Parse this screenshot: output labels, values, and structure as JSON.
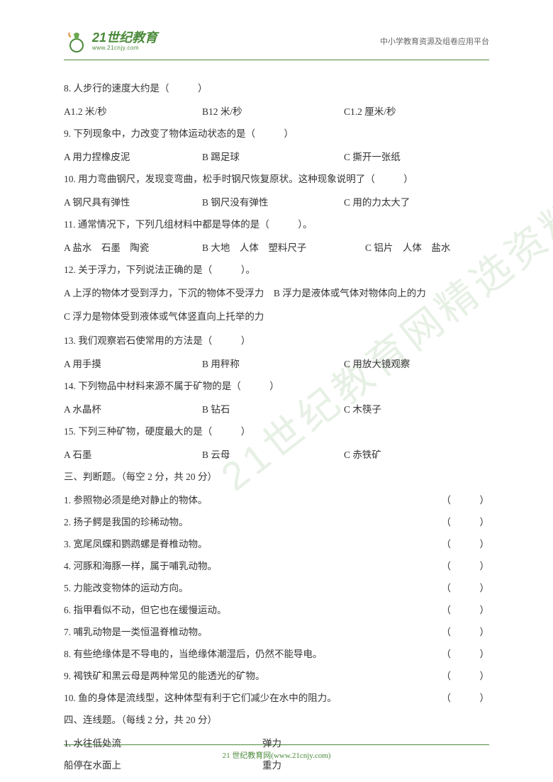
{
  "header": {
    "logo_main": "21世纪教育",
    "logo_sub": "www.21cnjy.com",
    "right_text": "中小学教育资源及组卷应用平台"
  },
  "watermark": "21世纪教育网精选资料",
  "questions": {
    "q8": {
      "stem": "8. 人步行的速度大约是（　　　）",
      "a": "A1.2 米/秒",
      "b": "B12 米/秒",
      "c": "C1.2 厘米/秒"
    },
    "q9": {
      "stem": "9. 下列现象中，力改变了物体运动状态的是（　　　）",
      "a": "A 用力捏橡皮泥",
      "b": "B 踢足球",
      "c": "C 撕开一张纸"
    },
    "q10": {
      "stem": "10. 用力弯曲钢尺，发现变弯曲，松手时钢尺恢复原状。这种现象说明了（　　　）",
      "a": "A 钢尺具有弹性",
      "b": "B 钢尺没有弹性",
      "c": "C 用的力太大了"
    },
    "q11": {
      "stem": "11. 通常情况下，下列几组材料中都是导体的是（　　　）。",
      "a": "A 盐水　石墨　陶瓷",
      "b": "B 大地　人体　塑料尺子",
      "c": "C 铝片　人体　盐水"
    },
    "q12": {
      "stem": "12. 关于浮力，下列说法正确的是（　　　）。",
      "ab": "A 上浮的物体才受到浮力，下沉的物体不受浮力　B 浮力是液体或气体对物体向上的力",
      "c": "C 浮力是物体受到液体或气体竖直向上托举的力"
    },
    "q13": {
      "stem": "13. 我们观察岩石使常用的方法是（　　　）",
      "a": "A 用手摸",
      "b": "B 用秤称",
      "c": "C 用放大镜观察"
    },
    "q14": {
      "stem": "14. 下列物品中材料来源不属于矿物的是（　　　）",
      "a": "A 水晶杯",
      "b": "B 钻石",
      "c": "C 木筷子"
    },
    "q15": {
      "stem": "15. 下列三种矿物，硬度最大的是（　　　）",
      "a": "A 石墨",
      "b": "B 云母",
      "c": "C 赤铁矿"
    }
  },
  "section3": {
    "title": "三、判断题。（每空 2 分，共 20 分）",
    "items": [
      "1. 参照物必须是绝对静止的物体。",
      "2. 扬子鳄是我国的珍稀动物。",
      "3. 宽尾凤蝶和鹦鹉螺是脊椎动物。",
      "4. 河豚和海豚一样，属于哺乳动物。",
      "5. 力能改变物体的运动方向。",
      "6. 指甲看似不动，但它也在缓慢运动。",
      "7. 哺乳动物是一类恒温脊椎动物。",
      "8. 有些绝缘体是不导电的，当绝缘体潮湿后，仍然不能导电。",
      "9. 褐铁矿和黑云母是两种常见的能透光的矿物。",
      "10. 鱼的身体是流线型，这种体型有利于它们减少在水中的阻力。"
    ],
    "paren": "（　　　）"
  },
  "section4": {
    "title": "四、连线题。（每线 2 分，共 20 分）",
    "rows": [
      {
        "left": "1. 水往低处流",
        "right": "弹力"
      },
      {
        "left": "船停在水面上",
        "right": "重力"
      }
    ]
  },
  "footer": "21 世纪教育网(www.21cnjy.com)"
}
